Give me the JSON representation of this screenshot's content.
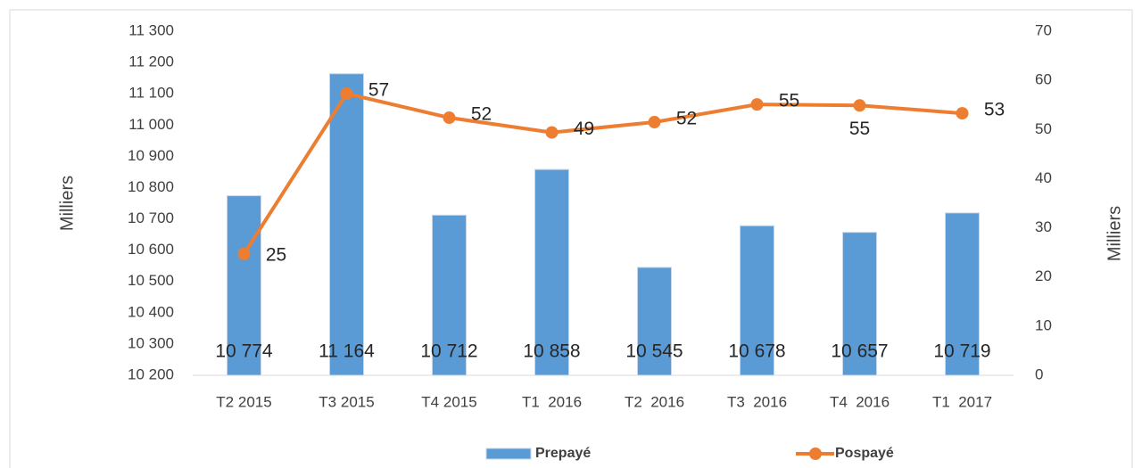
{
  "chart_data": {
    "type": "bar_line",
    "categories": [
      "T2 2015",
      "T3 2015",
      "T4 2015",
      "T1  2016",
      "T2  2016",
      "T3  2016",
      "T4  2016",
      "T1  2017"
    ],
    "series": [
      {
        "name": "Prepayé",
        "type": "bar",
        "color": "#5b9bd5",
        "values": [
          10774,
          11164,
          10712,
          10858,
          10545,
          10678,
          10657,
          10719
        ],
        "value_labels": [
          "10 774",
          "11 164",
          "10 712",
          "10 858",
          "10 545",
          "10 678",
          "10 657",
          "10 719"
        ]
      },
      {
        "name": "Pospayé",
        "type": "line",
        "axis": "y2",
        "color": "#ed7d31",
        "values": [
          24.7,
          57.3,
          52.4,
          49.4,
          51.5,
          55.1,
          54.9,
          53.3
        ],
        "value_labels": [
          "25",
          "57",
          "52",
          "49",
          "52",
          "55",
          "55",
          "53"
        ]
      }
    ],
    "ylabel": "Milliers",
    "y2label": "Milliers",
    "ylim": [
      10200,
      11300
    ],
    "yticks": [
      {
        "value": 10200,
        "label": "10 200"
      },
      {
        "value": 10300,
        "label": "10 300"
      },
      {
        "value": 10400,
        "label": "10 400"
      },
      {
        "value": 10500,
        "label": "10 500"
      },
      {
        "value": 10600,
        "label": "10 600"
      },
      {
        "value": 10700,
        "label": "10 700"
      },
      {
        "value": 10800,
        "label": "10 800"
      },
      {
        "value": 10900,
        "label": "10 900"
      },
      {
        "value": 11000,
        "label": "11 000"
      },
      {
        "value": 11100,
        "label": "11 100"
      },
      {
        "value": 11200,
        "label": "11 200"
      },
      {
        "value": 11300,
        "label": "11 300"
      }
    ],
    "y2lim": [
      0,
      70
    ],
    "y2ticks": [
      0,
      10,
      20,
      30,
      40,
      50,
      60,
      70
    ],
    "legend": "bottom"
  }
}
